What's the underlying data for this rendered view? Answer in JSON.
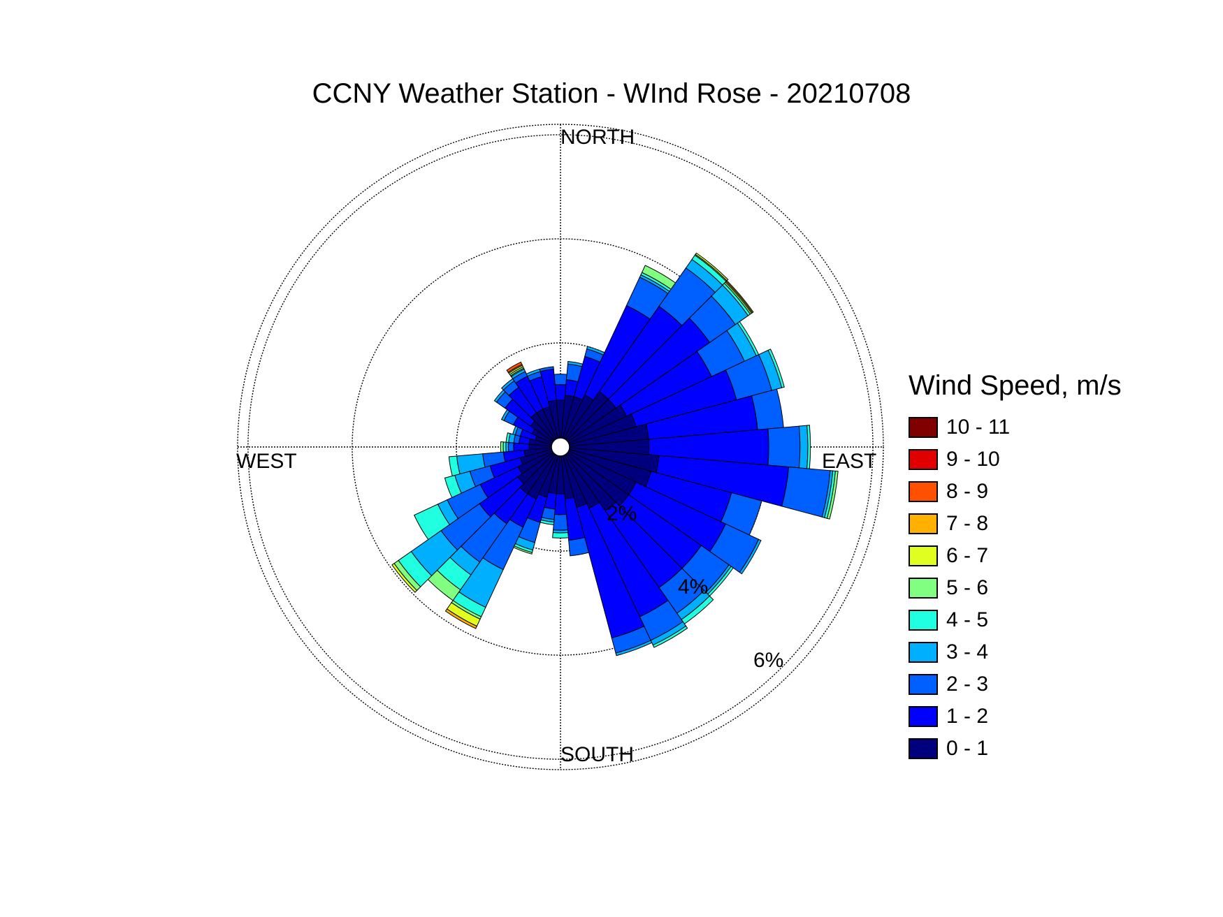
{
  "chart_data": {
    "type": "wind-rose",
    "title": "CCNY Weather Station - WInd Rose - 20210708",
    "direction_labels": [
      "NORTH",
      "EAST",
      "SOUTH",
      "WEST"
    ],
    "rings": [
      2,
      4,
      6
    ],
    "ring_labels": [
      "2%",
      "4%",
      "6%"
    ],
    "rlim": [
      0,
      6.2
    ],
    "grid": true,
    "legend_title": "Wind Speed, m/s",
    "legend_position": "right",
    "speed_bins": [
      {
        "label": "0 - 1",
        "color": "#00007f"
      },
      {
        "label": "1 - 2",
        "color": "#0000ff"
      },
      {
        "label": "2 - 3",
        "color": "#0060ff"
      },
      {
        "label": "3 - 4",
        "color": "#00b0ff"
      },
      {
        "label": "4 - 5",
        "color": "#20ffe0"
      },
      {
        "label": "5 - 6",
        "color": "#80ff80"
      },
      {
        "label": "6 - 7",
        "color": "#e0ff20"
      },
      {
        "label": "7 - 8",
        "color": "#ffb000"
      },
      {
        "label": "8 - 9",
        "color": "#ff5000"
      },
      {
        "label": "9 - 10",
        "color": "#e00000"
      },
      {
        "label": "10 - 11",
        "color": "#800000"
      }
    ],
    "sector_width_deg": 10,
    "sectors": [
      {
        "dir": 0,
        "cum": [
          0.9,
          1.2,
          1.4
        ]
      },
      {
        "dir": 10,
        "cum": [
          1.0,
          1.3,
          1.6,
          1.65
        ]
      },
      {
        "dir": 20,
        "cum": [
          1.0,
          1.8,
          1.95,
          2.0
        ]
      },
      {
        "dir": 30,
        "cum": [
          1.1,
          3.0,
          3.6,
          3.65,
          3.7,
          3.85
        ]
      },
      {
        "dir": 40,
        "cum": [
          1.3,
          3.3,
          4.2,
          4.4,
          4.5,
          4.52,
          4.55
        ]
      },
      {
        "dir": 50,
        "cum": [
          1.3,
          3.5,
          4.1,
          4.4,
          4.45,
          4.48,
          4.5,
          4.52
        ]
      },
      {
        "dir": 60,
        "cum": [
          1.4,
          3.2,
          3.9,
          4.15,
          4.2
        ]
      },
      {
        "dir": 70,
        "cum": [
          1.5,
          3.5,
          4.2,
          4.4,
          4.45
        ]
      },
      {
        "dir": 80,
        "cum": [
          1.7,
          3.8,
          4.3
        ]
      },
      {
        "dir": 90,
        "cum": [
          1.7,
          4.0,
          4.6,
          4.75,
          4.8
        ]
      },
      {
        "dir": 100,
        "cum": [
          1.9,
          4.4,
          5.2,
          5.25,
          5.3,
          5.35
        ]
      },
      {
        "dir": 110,
        "cum": [
          1.8,
          3.4,
          4.0
        ]
      },
      {
        "dir": 120,
        "cum": [
          1.6,
          3.5,
          4.2,
          4.25
        ]
      },
      {
        "dir": 130,
        "cum": [
          1.6,
          3.3,
          3.95,
          4.0,
          4.05
        ]
      },
      {
        "dir": 140,
        "cum": [
          1.5,
          3.3,
          3.9,
          4.05,
          4.15
        ]
      },
      {
        "dir": 150,
        "cum": [
          1.3,
          3.6,
          4.1,
          4.2,
          4.25
        ]
      },
      {
        "dir": 160,
        "cum": [
          1.2,
          3.8,
          4.1,
          4.15
        ]
      },
      {
        "dir": 170,
        "cum": [
          1.0,
          1.8,
          2.1
        ]
      },
      {
        "dir": 180,
        "cum": [
          0.9,
          1.3,
          1.6,
          1.65,
          1.75
        ]
      },
      {
        "dir": 190,
        "cum": [
          0.9,
          1.2,
          1.4,
          1.45,
          1.5
        ]
      },
      {
        "dir": 200,
        "cum": [
          1.0,
          1.5,
          1.9,
          2.05,
          2.1,
          2.13
        ]
      },
      {
        "dir": 210,
        "cum": [
          1.1,
          1.7,
          2.6,
          3.4,
          3.6,
          3.65,
          3.8,
          3.85
        ]
      },
      {
        "dir": 220,
        "cum": [
          1.1,
          1.8,
          2.7,
          3.0,
          3.35,
          3.6
        ]
      },
      {
        "dir": 230,
        "cum": [
          1.0,
          1.9,
          2.8,
          3.5,
          3.8,
          3.9,
          3.95
        ]
      },
      {
        "dir": 240,
        "cum": [
          0.9,
          1.7,
          2.4,
          2.6,
          3.1
        ]
      },
      {
        "dir": 250,
        "cum": [
          0.8,
          1.4,
          1.8,
          2.1,
          2.3
        ]
      },
      {
        "dir": 260,
        "cum": [
          0.7,
          1.1,
          1.5,
          2.0,
          2.15
        ]
      },
      {
        "dir": 270,
        "cum": [
          0.6,
          0.9,
          1.0,
          1.05,
          1.1,
          1.15
        ]
      },
      {
        "dir": 280,
        "cum": [
          0.6,
          0.8,
          0.9,
          1.0,
          1.05
        ]
      },
      {
        "dir": 290,
        "cum": [
          0.5,
          0.8,
          0.9,
          0.95
        ]
      },
      {
        "dir": 300,
        "cum": [
          0.6,
          1.0,
          1.2,
          1.25
        ]
      },
      {
        "dir": 310,
        "cum": [
          0.7,
          1.3,
          1.5,
          1.55
        ]
      },
      {
        "dir": 320,
        "cum": [
          0.8,
          1.4,
          1.55,
          1.6
        ]
      },
      {
        "dir": 330,
        "cum": [
          0.8,
          1.5,
          1.6,
          1.65,
          1.67,
          1.7,
          1.73,
          1.75,
          1.8
        ]
      },
      {
        "dir": 340,
        "cum": [
          0.8,
          1.4,
          1.5,
          1.55
        ]
      },
      {
        "dir": 350,
        "cum": [
          0.9,
          1.5,
          1.55
        ]
      }
    ]
  }
}
